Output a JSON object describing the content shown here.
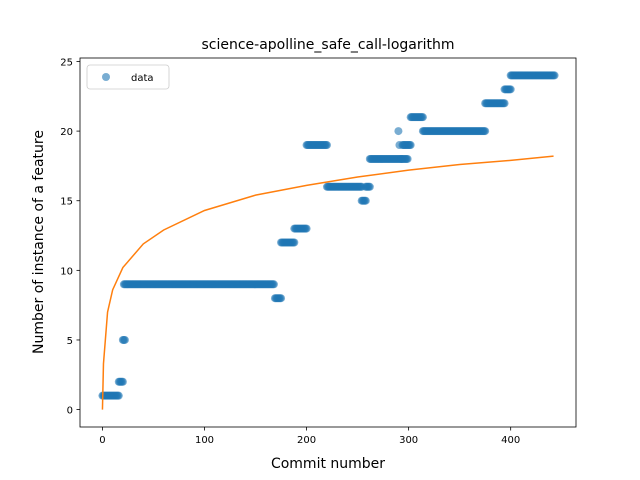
{
  "chart_data": {
    "type": "scatter",
    "title": "science-apolline_safe_call-logarithm",
    "xlabel": "Commit number",
    "ylabel": "Number of instance of a feature",
    "xlim": [
      -22,
      464
    ],
    "ylim": [
      -1.25,
      25.25
    ],
    "x_ticks": [
      0,
      100,
      200,
      300,
      400
    ],
    "y_ticks": [
      0,
      5,
      10,
      15,
      20,
      25
    ],
    "grid": false,
    "legend": {
      "location": "upper left",
      "entries": [
        "data"
      ]
    },
    "colors": {
      "data": "#1f77b4",
      "fit": "#ff7f0e"
    },
    "series": [
      {
        "name": "data",
        "kind": "scatter",
        "segments": [
          {
            "x_from": 0,
            "x_to": 16,
            "y": 1
          },
          {
            "x_from": 16,
            "x_to": 20,
            "y": 2
          },
          {
            "x_from": 20,
            "x_to": 22,
            "y": 5
          },
          {
            "x_from": 21,
            "x_to": 168,
            "y": 9
          },
          {
            "x_from": 169,
            "x_to": 175,
            "y": 8
          },
          {
            "x_from": 175,
            "x_to": 188,
            "y": 12
          },
          {
            "x_from": 188,
            "x_to": 200,
            "y": 13
          },
          {
            "x_from": 200,
            "x_to": 220,
            "y": 19
          },
          {
            "x_from": 220,
            "x_to": 254,
            "y": 16
          },
          {
            "x_from": 254,
            "x_to": 258,
            "y": 15
          },
          {
            "x_from": 258,
            "x_to": 262,
            "y": 16
          },
          {
            "x_from": 262,
            "x_to": 293,
            "y": 18
          },
          {
            "x_from": 290,
            "x_to": 290,
            "y": 20
          },
          {
            "x_from": 291,
            "x_to": 291,
            "y": 19
          },
          {
            "x_from": 293,
            "x_to": 299,
            "y": 18
          },
          {
            "x_from": 294,
            "x_to": 302,
            "y": 19
          },
          {
            "x_from": 302,
            "x_to": 314,
            "y": 21
          },
          {
            "x_from": 314,
            "x_to": 375,
            "y": 20
          },
          {
            "x_from": 375,
            "x_to": 394,
            "y": 22
          },
          {
            "x_from": 394,
            "x_to": 400,
            "y": 23
          },
          {
            "x_from": 400,
            "x_to": 443,
            "y": 24
          }
        ]
      },
      {
        "name": "",
        "kind": "line",
        "model": "logarithmic",
        "x_range": [
          0,
          442
        ],
        "samples": [
          [
            0,
            0
          ],
          [
            1,
            3.3
          ],
          [
            5,
            7.0
          ],
          [
            10,
            8.6
          ],
          [
            20,
            10.2
          ],
          [
            40,
            11.9
          ],
          [
            60,
            12.9
          ],
          [
            100,
            14.3
          ],
          [
            150,
            15.4
          ],
          [
            200,
            16.1
          ],
          [
            250,
            16.7
          ],
          [
            300,
            17.2
          ],
          [
            350,
            17.6
          ],
          [
            400,
            17.9
          ],
          [
            442,
            18.2
          ]
        ]
      }
    ]
  }
}
